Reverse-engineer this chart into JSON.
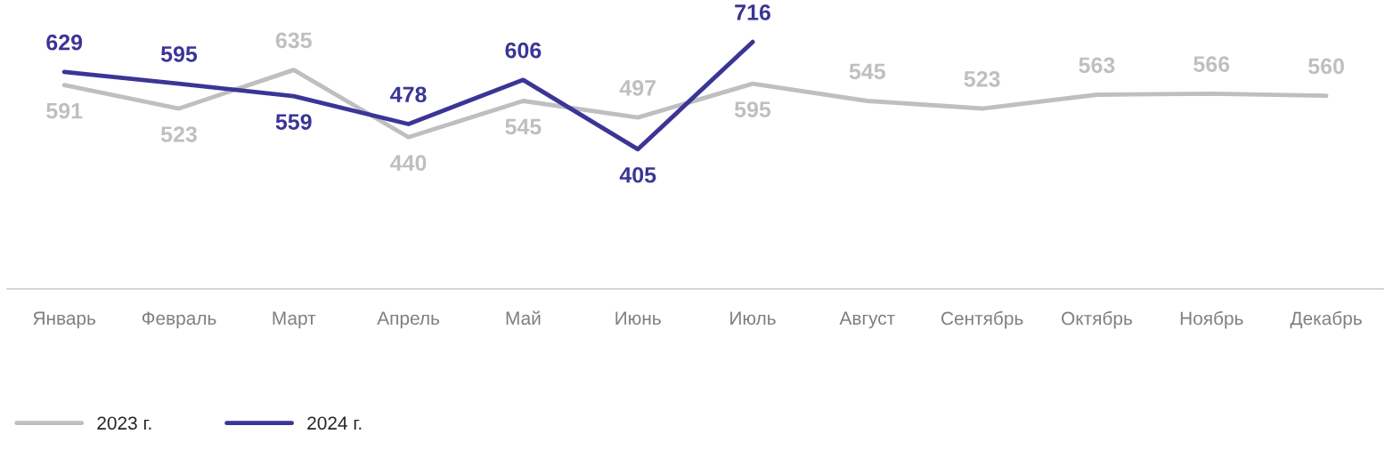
{
  "chart_data": {
    "type": "line",
    "categories": [
      "Январь",
      "Февраль",
      "Март",
      "Апрель",
      "Май",
      "Июнь",
      "Июль",
      "Август",
      "Сентябрь",
      "Октябрь",
      "Ноябрь",
      "Декабрь"
    ],
    "series": [
      {
        "name": "2023 г.",
        "color": "#bfbfbf",
        "values": [
          591,
          523,
          635,
          440,
          545,
          497,
          595,
          545,
          523,
          563,
          566,
          560
        ]
      },
      {
        "name": "2024 г.",
        "color": "#3a3596",
        "values": [
          629,
          595,
          559,
          478,
          606,
          405,
          716,
          null,
          null,
          null,
          null,
          null
        ]
      }
    ],
    "data_labels": true,
    "grid": false,
    "legend": "bottom left",
    "marker": "none",
    "line_style": "solid"
  }
}
